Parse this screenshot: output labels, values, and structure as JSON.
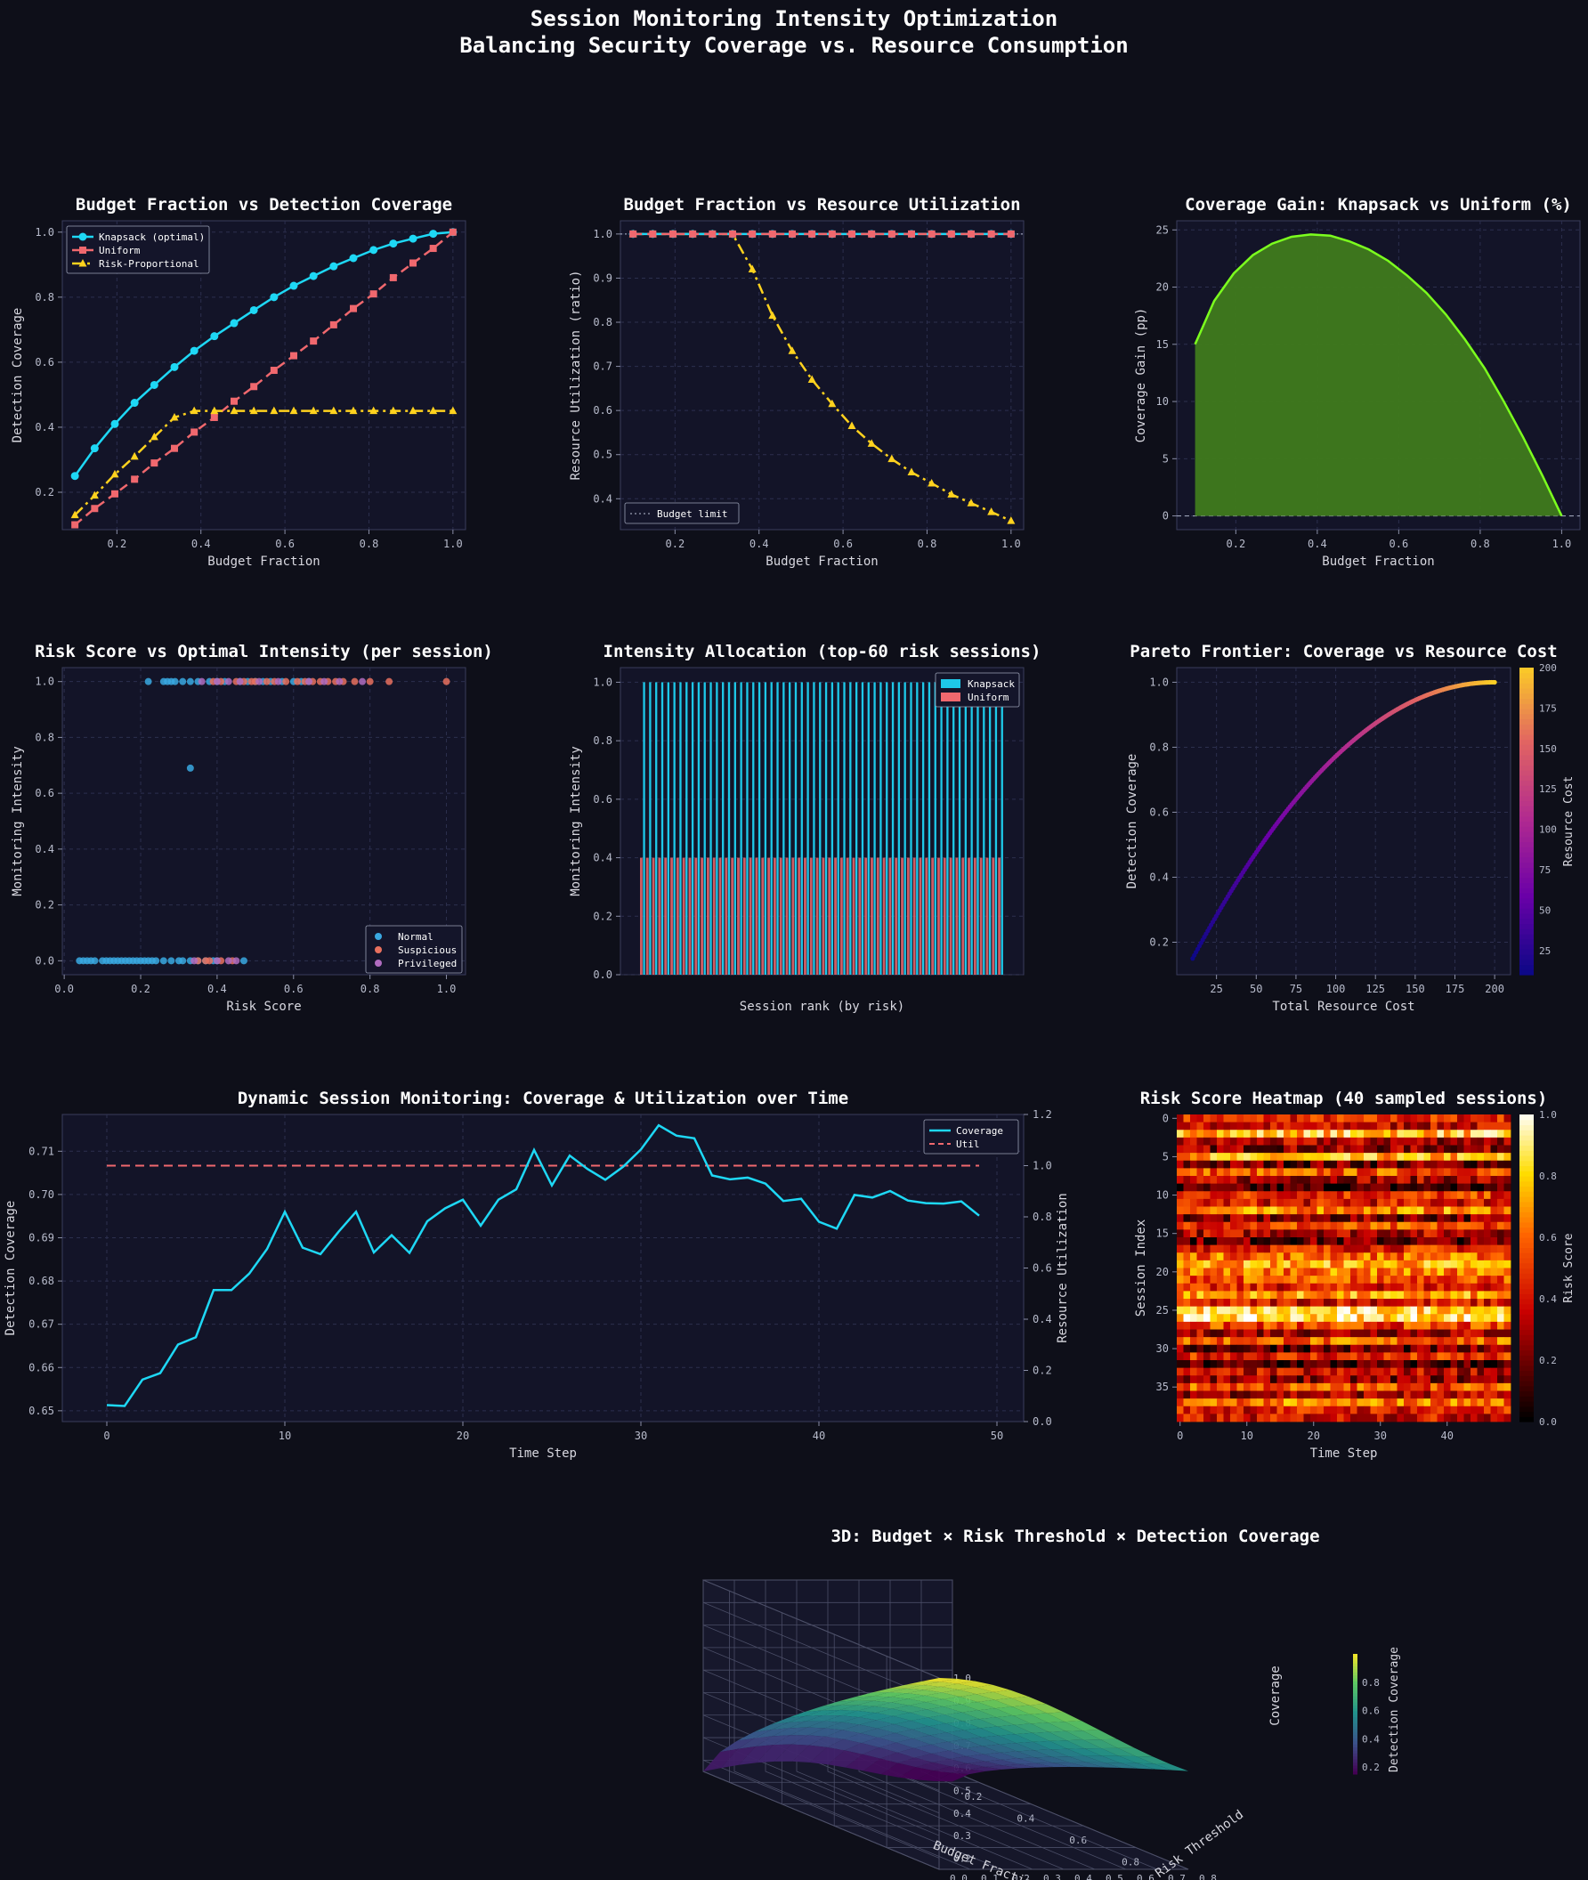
{
  "page": {
    "title_line1": "Session Monitoring Intensity Optimization",
    "title_line2": "Balancing Security Coverage vs. Resource Consumption"
  },
  "theme": {
    "background": "#0e0f19",
    "panel": "#131428",
    "cyan": "#1ed8f5",
    "coral": "#f0686e",
    "gold": "#ffd21e",
    "lime": "#7cff1e",
    "text": "#d8d8e0"
  },
  "chart_data": [
    {
      "id": "coverage",
      "type": "line",
      "title": "Budget Fraction vs Detection Coverage",
      "xlabel": "Budget Fraction",
      "ylabel": "Detection Coverage",
      "xlim": [
        0.07,
        1.03
      ],
      "ylim": [
        0.085,
        1.035
      ],
      "xticks": [
        0.2,
        0.4,
        0.6,
        0.8,
        1.0
      ],
      "yticks": [
        0.2,
        0.4,
        0.6,
        0.8,
        1.0
      ],
      "legend": "top-left",
      "x": [
        0.1,
        0.147,
        0.195,
        0.242,
        0.289,
        0.337,
        0.384,
        0.432,
        0.479,
        0.526,
        0.574,
        0.621,
        0.668,
        0.716,
        0.763,
        0.811,
        0.858,
        0.905,
        0.953,
        1.0
      ],
      "series": [
        {
          "name": "Knapsack (optimal)",
          "color": "#1ed8f5",
          "marker": "circle",
          "dash": "solid",
          "values": [
            0.25,
            0.335,
            0.41,
            0.475,
            0.53,
            0.585,
            0.635,
            0.68,
            0.72,
            0.76,
            0.8,
            0.835,
            0.865,
            0.895,
            0.92,
            0.945,
            0.965,
            0.98,
            0.995,
            1.0
          ]
        },
        {
          "name": "Uniform",
          "color": "#f0686e",
          "marker": "square",
          "dash": "dashed",
          "values": [
            0.1,
            0.15,
            0.195,
            0.24,
            0.29,
            0.335,
            0.385,
            0.43,
            0.48,
            0.525,
            0.575,
            0.62,
            0.665,
            0.715,
            0.765,
            0.81,
            0.86,
            0.905,
            0.95,
            1.0
          ]
        },
        {
          "name": "Risk-Proportional",
          "color": "#ffd21e",
          "marker": "triangle",
          "dash": "dashdot",
          "values": [
            0.13,
            0.19,
            0.255,
            0.31,
            0.37,
            0.43,
            0.45,
            0.45,
            0.45,
            0.45,
            0.45,
            0.45,
            0.45,
            0.45,
            0.45,
            0.45,
            0.45,
            0.45,
            0.45,
            0.45
          ]
        }
      ]
    },
    {
      "id": "utilization",
      "type": "line",
      "title": "Budget Fraction vs Resource Utilization",
      "xlabel": "Budget Fraction",
      "ylabel": "Resource Utilization (ratio)",
      "xlim": [
        0.07,
        1.03
      ],
      "ylim": [
        0.33,
        1.03
      ],
      "xticks": [
        0.2,
        0.4,
        0.6,
        0.8,
        1.0
      ],
      "yticks": [
        0.4,
        0.5,
        0.6,
        0.7,
        0.8,
        0.9,
        1.0
      ],
      "legend": "bottom-left",
      "reference_line": {
        "y": 1.0,
        "name": "Budget limit",
        "color": "#9aa0b4"
      },
      "x": [
        0.1,
        0.147,
        0.195,
        0.242,
        0.289,
        0.337,
        0.384,
        0.432,
        0.479,
        0.526,
        0.574,
        0.621,
        0.668,
        0.716,
        0.763,
        0.811,
        0.858,
        0.905,
        0.953,
        1.0
      ],
      "series": [
        {
          "name": "Knapsack (optimal)",
          "color": "#1ed8f5",
          "marker": "circle",
          "dash": "solid",
          "values": [
            1,
            1,
            1,
            1,
            1,
            1,
            1,
            1,
            1,
            1,
            1,
            1,
            1,
            1,
            1,
            1,
            1,
            1,
            1,
            1
          ]
        },
        {
          "name": "Uniform",
          "color": "#f0686e",
          "marker": "square",
          "dash": "dashed",
          "values": [
            1,
            1,
            1,
            1,
            1,
            1,
            1,
            1,
            1,
            1,
            1,
            1,
            1,
            1,
            1,
            1,
            1,
            1,
            1,
            1
          ]
        },
        {
          "name": "Risk-Proportional",
          "color": "#ffd21e",
          "marker": "triangle",
          "dash": "dashdot",
          "values": [
            1,
            1,
            1,
            1,
            1,
            1,
            0.92,
            0.815,
            0.735,
            0.67,
            0.615,
            0.565,
            0.525,
            0.49,
            0.46,
            0.435,
            0.41,
            0.39,
            0.37,
            0.35
          ]
        }
      ]
    },
    {
      "id": "gain",
      "type": "area",
      "title": "Coverage Gain: Knapsack vs Uniform (%)",
      "xlabel": "Budget Fraction",
      "ylabel": "Coverage Gain (pp)",
      "xlim": [
        0.055,
        1.045
      ],
      "ylim": [
        -1.2,
        25.8
      ],
      "xticks": [
        0.2,
        0.4,
        0.6,
        0.8,
        1.0
      ],
      "yticks": [
        0,
        5,
        10,
        15,
        20,
        25
      ],
      "fill_color": "#3f7a1c",
      "line_color": "#7cff1e",
      "x": [
        0.1,
        0.147,
        0.195,
        0.242,
        0.289,
        0.337,
        0.384,
        0.432,
        0.479,
        0.526,
        0.574,
        0.621,
        0.668,
        0.716,
        0.763,
        0.811,
        0.858,
        0.905,
        0.953,
        1.0
      ],
      "values": [
        15.0,
        18.8,
        21.2,
        22.8,
        23.8,
        24.4,
        24.6,
        24.5,
        24.0,
        23.3,
        22.3,
        21.0,
        19.5,
        17.6,
        15.4,
        12.9,
        10.0,
        6.9,
        3.5,
        0.0
      ]
    },
    {
      "id": "risk_scatter",
      "type": "scatter",
      "title": "Risk Score vs Optimal Intensity (per session)",
      "xlabel": "Risk Score",
      "ylabel": "Monitoring Intensity",
      "xlim": [
        -0.005,
        1.05
      ],
      "ylim": [
        -0.05,
        1.05
      ],
      "xticks": [
        0.0,
        0.2,
        0.4,
        0.6,
        0.8,
        1.0
      ],
      "yticks": [
        0.0,
        0.2,
        0.4,
        0.6,
        0.8,
        1.0
      ],
      "legend": "bottom-right",
      "series": [
        {
          "name": "Normal",
          "color": "#3aa8e0",
          "points": [
            [
              0.04,
              0
            ],
            [
              0.05,
              0
            ],
            [
              0.06,
              0
            ],
            [
              0.07,
              0
            ],
            [
              0.08,
              0
            ],
            [
              0.1,
              0
            ],
            [
              0.11,
              0
            ],
            [
              0.12,
              0
            ],
            [
              0.13,
              0
            ],
            [
              0.14,
              0
            ],
            [
              0.15,
              0
            ],
            [
              0.16,
              0
            ],
            [
              0.17,
              0
            ],
            [
              0.18,
              0
            ],
            [
              0.19,
              0
            ],
            [
              0.2,
              0
            ],
            [
              0.21,
              0
            ],
            [
              0.22,
              0
            ],
            [
              0.23,
              0
            ],
            [
              0.24,
              0
            ],
            [
              0.26,
              0
            ],
            [
              0.28,
              0
            ],
            [
              0.3,
              0
            ],
            [
              0.31,
              0
            ],
            [
              0.33,
              0
            ],
            [
              0.35,
              0
            ],
            [
              0.37,
              0
            ],
            [
              0.39,
              0
            ],
            [
              0.4,
              0
            ],
            [
              0.47,
              0
            ],
            [
              0.22,
              1
            ],
            [
              0.26,
              1
            ],
            [
              0.27,
              1
            ],
            [
              0.28,
              1
            ],
            [
              0.29,
              1
            ],
            [
              0.31,
              1
            ],
            [
              0.33,
              1
            ],
            [
              0.35,
              1
            ],
            [
              0.38,
              1
            ],
            [
              0.4,
              1
            ],
            [
              0.42,
              1
            ],
            [
              0.46,
              1
            ],
            [
              0.48,
              1
            ],
            [
              0.5,
              1
            ],
            [
              0.52,
              1
            ],
            [
              0.54,
              1
            ],
            [
              0.57,
              1
            ],
            [
              0.6,
              1
            ],
            [
              0.62,
              1
            ],
            [
              0.64,
              1
            ],
            [
              0.33,
              0.69
            ]
          ]
        },
        {
          "name": "Suspicious",
          "color": "#e8705e",
          "points": [
            [
              0.35,
              0
            ],
            [
              0.37,
              0
            ],
            [
              0.38,
              0
            ],
            [
              0.41,
              0
            ],
            [
              0.44,
              0
            ],
            [
              0.39,
              1
            ],
            [
              0.41,
              1
            ],
            [
              0.45,
              1
            ],
            [
              0.47,
              1
            ],
            [
              0.49,
              1
            ],
            [
              0.5,
              1
            ],
            [
              0.53,
              1
            ],
            [
              0.55,
              1
            ],
            [
              0.58,
              1
            ],
            [
              0.61,
              1
            ],
            [
              0.63,
              1
            ],
            [
              0.65,
              1
            ],
            [
              0.67,
              1
            ],
            [
              0.69,
              1
            ],
            [
              0.71,
              1
            ],
            [
              0.73,
              1
            ],
            [
              0.76,
              1
            ],
            [
              0.8,
              1
            ],
            [
              0.85,
              1
            ],
            [
              1.0,
              1
            ]
          ]
        },
        {
          "name": "Privileged",
          "color": "#b06cc0",
          "points": [
            [
              0.34,
              0
            ],
            [
              0.4,
              0
            ],
            [
              0.43,
              0
            ],
            [
              0.45,
              0
            ],
            [
              0.36,
              1
            ],
            [
              0.4,
              1
            ],
            [
              0.43,
              1
            ],
            [
              0.46,
              1
            ],
            [
              0.51,
              1
            ],
            [
              0.56,
              1
            ],
            [
              0.64,
              1
            ],
            [
              0.68,
              1
            ],
            [
              0.72,
              1
            ],
            [
              0.78,
              1
            ]
          ]
        }
      ]
    },
    {
      "id": "allocation",
      "type": "bar",
      "title": "Intensity Allocation (top-60 risk sessions)",
      "xlabel": "Session rank (by risk)",
      "ylabel": "Monitoring Intensity",
      "ylim": [
        0,
        1.05
      ],
      "yticks": [
        0.0,
        0.2,
        0.4,
        0.6,
        0.8,
        1.0
      ],
      "legend": "top-right",
      "session_count": 60,
      "series": [
        {
          "name": "Knapsack",
          "color": "#1ec8e8",
          "value_each": 1.0
        },
        {
          "name": "Uniform",
          "color": "#f0686e",
          "value_each": 0.4
        }
      ]
    },
    {
      "id": "pareto",
      "type": "scatter",
      "title": "Pareto Frontier: Coverage vs Resource Cost",
      "xlabel": "Total Resource Cost",
      "ylabel": "Detection Coverage",
      "xlim": [
        0,
        210
      ],
      "ylim": [
        0.1,
        1.045
      ],
      "xticks": [
        25,
        50,
        75,
        100,
        125,
        150,
        175,
        200
      ],
      "yticks": [
        0.2,
        0.4,
        0.6,
        0.8,
        1.0
      ],
      "colorbar": {
        "label": "Resource Cost",
        "min": 10,
        "max": 200,
        "ticks": [
          25,
          50,
          75,
          100,
          125,
          150,
          175,
          200
        ]
      },
      "x_range": [
        10,
        200
      ],
      "coverage_range": [
        0.15,
        1.0
      ]
    },
    {
      "id": "dynamic",
      "type": "line",
      "title": "Dynamic Session Monitoring: Coverage & Utilization over Time",
      "xlabel": "Time Step",
      "ylabel": "Detection Coverage",
      "ylabel_right": "Resource Utilization",
      "xlim": [
        -2.5,
        51.5
      ],
      "ylim": [
        0.6475,
        0.7185
      ],
      "ylim_right": [
        0,
        1.2
      ],
      "xticks": [
        0,
        10,
        20,
        30,
        40,
        50
      ],
      "yticks": [
        0.65,
        0.66,
        0.67,
        0.68,
        0.69,
        0.7,
        0.71
      ],
      "yticks_right": [
        0.0,
        0.2,
        0.4,
        0.6,
        0.8,
        1.0,
        1.2
      ],
      "legend": "top-right",
      "series": [
        {
          "name": "Coverage",
          "color": "#1ed8f5",
          "axis": "left",
          "values": [
            0.6513,
            0.6511,
            0.6572,
            0.6587,
            0.6653,
            0.667,
            0.6779,
            0.6779,
            0.6817,
            0.6874,
            0.696,
            0.6877,
            0.6862,
            0.6913,
            0.696,
            0.6866,
            0.6906,
            0.6865,
            0.6938,
            0.6968,
            0.6988,
            0.6928,
            0.6988,
            0.7012,
            0.7103,
            0.7021,
            0.709,
            0.7059,
            0.7034,
            0.7064,
            0.7104,
            0.716,
            0.7136,
            0.713,
            0.7044,
            0.7035,
            0.7039,
            0.7025,
            0.6985,
            0.699,
            0.6937,
            0.6921,
            0.6999,
            0.6993,
            0.7008,
            0.6986,
            0.698,
            0.6979,
            0.6984,
            0.6951
          ]
        },
        {
          "name": "Util",
          "color": "#f0686e",
          "axis": "right",
          "dash": "dashed",
          "values": [
            1,
            1,
            1,
            1,
            1,
            1,
            1,
            1,
            1,
            1,
            1,
            1,
            1,
            1,
            1,
            1,
            1,
            1,
            1,
            1,
            1,
            1,
            1,
            1,
            1,
            1,
            1,
            1,
            1,
            1,
            1,
            1,
            1,
            1,
            1,
            1,
            1,
            1,
            1,
            1,
            1,
            1,
            1,
            1,
            1,
            1,
            1,
            1,
            1,
            1
          ]
        }
      ]
    },
    {
      "id": "heatmap",
      "type": "heatmap",
      "title": "Risk Score Heatmap (40 sampled sessions)",
      "xlabel": "Time Step",
      "ylabel": "Session Index",
      "rows": 40,
      "cols": 50,
      "xticks": [
        0,
        10,
        20,
        30,
        40
      ],
      "yticks": [
        0,
        5,
        10,
        15,
        20,
        25,
        30,
        35
      ],
      "colorbar": {
        "label": "Risk Score",
        "min": 0,
        "max": 1,
        "ticks": [
          0.0,
          0.2,
          0.4,
          0.6,
          0.8,
          1.0
        ]
      },
      "row_mean_risk": [
        0.45,
        0.35,
        0.78,
        0.3,
        0.25,
        0.72,
        0.2,
        0.55,
        0.3,
        0.1,
        0.48,
        0.4,
        0.65,
        0.22,
        0.52,
        0.33,
        0.18,
        0.46,
        0.6,
        0.72,
        0.62,
        0.55,
        0.42,
        0.68,
        0.4,
        0.82,
        0.85,
        0.5,
        0.3,
        0.58,
        0.18,
        0.45,
        0.12,
        0.35,
        0.25,
        0.55,
        0.3,
        0.62,
        0.42,
        0.38
      ]
    },
    {
      "id": "surface3d",
      "type": "surface",
      "title": "3D: Budget × Risk Threshold × Detection Coverage",
      "xlabel": "Budget Fraction",
      "ylabel": "Risk Threshold",
      "zlabel": "Coverage",
      "xticks": [
        0.2,
        0.4,
        0.6,
        0.8,
        1.0
      ],
      "yticks": [
        0.0,
        0.1,
        0.2,
        0.3,
        0.4,
        0.5,
        0.6,
        0.7,
        0.8
      ],
      "zticks": [
        0.2,
        0.3,
        0.4,
        0.5,
        0.6,
        0.7,
        0.8,
        0.9,
        1.0
      ],
      "xlim": [
        0.1,
        1.0
      ],
      "ylim": [
        0.0,
        0.8
      ],
      "zlim": [
        0.15,
        1.0
      ],
      "colorbar": {
        "label": "Detection Coverage",
        "min": 0.15,
        "max": 1.0,
        "ticks": [
          0.2,
          0.4,
          0.6,
          0.8
        ]
      }
    }
  ]
}
